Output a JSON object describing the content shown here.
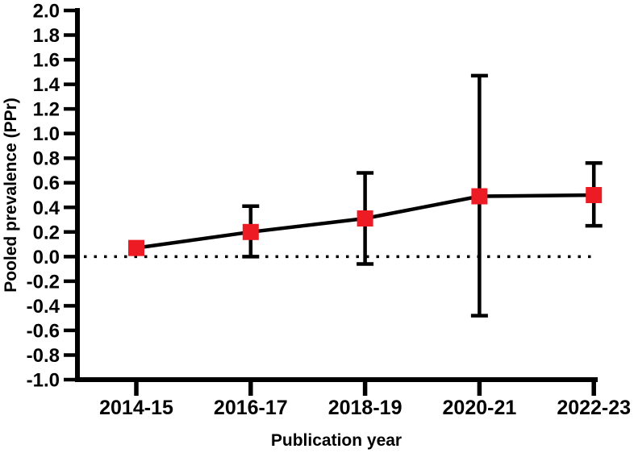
{
  "chart_data": {
    "type": "line",
    "title": "",
    "xlabel": "Publication year",
    "ylabel": "Pooled prevalence (PPr)",
    "categories": [
      "2014-15",
      "2016-17",
      "2018-19",
      "2020-21",
      "2022-23"
    ],
    "series": [
      {
        "name": "Pooled prevalence (PPr)",
        "values": [
          0.07,
          0.2,
          0.31,
          0.49,
          0.5
        ],
        "ci_low": [
          null,
          0.0,
          -0.06,
          -0.48,
          0.25
        ],
        "ci_high": [
          null,
          0.41,
          0.68,
          1.47,
          0.76
        ],
        "marker": "square",
        "marker_color": "#ED1C24",
        "line_color": "#000000"
      }
    ],
    "ylim": [
      -1.0,
      2.0
    ],
    "ytick_step": 0.2,
    "ytick_labels": [
      "2.0",
      "1.8",
      "1.6",
      "1.4",
      "1.2",
      "1.0",
      "0.8",
      "0.6",
      "0.4",
      "0.2",
      "0.0",
      "-0.2",
      "-0.4",
      "-0.6",
      "-0.8",
      "-1.0"
    ],
    "reference_line": {
      "y": 0.0,
      "style": "dotted",
      "color": "#000000"
    },
    "grid": false,
    "legend": false,
    "axis_color": "#000000",
    "background": "#FFFFFF"
  }
}
